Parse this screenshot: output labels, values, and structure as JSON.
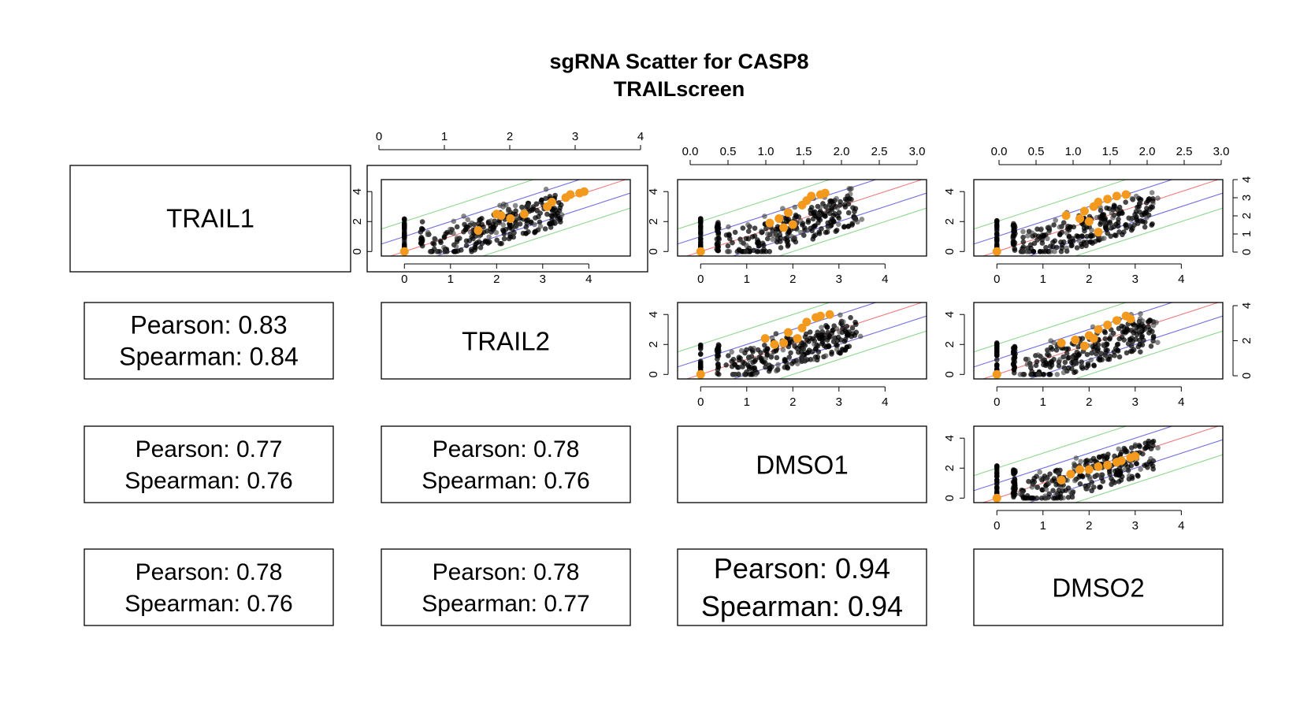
{
  "title": "sgRNA Scatter for CASP8",
  "subtitle": "TRAILscreen",
  "samples": [
    "TRAIL1",
    "TRAIL2",
    "DMSO1",
    "DMSO2"
  ],
  "correlations": [
    {
      "row": 1,
      "col": 0,
      "pearson": "Pearson: 0.83",
      "spearman": "Spearman: 0.84"
    },
    {
      "row": 2,
      "col": 0,
      "pearson": "Pearson: 0.77",
      "spearman": "Spearman: 0.76"
    },
    {
      "row": 2,
      "col": 1,
      "pearson": "Pearson: 0.78",
      "spearman": "Spearman: 0.76"
    },
    {
      "row": 3,
      "col": 0,
      "pearson": "Pearson: 0.78",
      "spearman": "Spearman: 0.76"
    },
    {
      "row": 3,
      "col": 1,
      "pearson": "Pearson: 0.78",
      "spearman": "Spearman: 0.77"
    },
    {
      "row": 3,
      "col": 2,
      "pearson": "Pearson: 0.94",
      "spearman": "Spearman: 0.94"
    }
  ],
  "colors": {
    "points": "#000000",
    "highlight": "#f39a1e",
    "line_identity": "#f08080",
    "line_inner": "#6f6fe0",
    "line_outer": "#8fd88f"
  },
  "chart_data": {
    "type": "scatter",
    "xlim": [
      -0.5,
      4.9
    ],
    "ylim": [
      -0.3,
      4.8
    ],
    "top_axis_ticks": {
      "col1": [
        "0",
        "1",
        "2",
        "3",
        "4"
      ],
      "col2": [
        "0.0",
        "0.5",
        "1.0",
        "1.5",
        "2.0",
        "2.5",
        "3.0"
      ],
      "col3": [
        "0.0",
        "0.5",
        "1.0",
        "1.5",
        "2.0",
        "2.5",
        "3.0"
      ]
    },
    "bottom_axis_ticks": [
      "0",
      "1",
      "2",
      "3",
      "4"
    ],
    "left_axis_ticks": [
      "0",
      "2",
      "4"
    ],
    "right_axis_ticks": {
      "row0": [
        "0",
        "1",
        "2",
        "3",
        "4"
      ],
      "row1": [
        "0",
        "2",
        "4"
      ]
    },
    "panels": [
      {
        "row": 0,
        "col": 1,
        "highlight": [
          [
            0,
            0
          ],
          [
            1.6,
            1.4
          ],
          [
            2.0,
            2.5
          ],
          [
            2.1,
            2.4
          ],
          [
            2.3,
            2.2
          ],
          [
            2.6,
            2.5
          ],
          [
            3.1,
            3.0
          ],
          [
            3.2,
            3.3
          ],
          [
            3.5,
            3.6
          ],
          [
            3.6,
            3.8
          ],
          [
            3.8,
            3.9
          ],
          [
            3.9,
            4.0
          ]
        ]
      },
      {
        "row": 0,
        "col": 2,
        "highlight": [
          [
            0,
            0
          ],
          [
            1.5,
            1.9
          ],
          [
            1.7,
            2.2
          ],
          [
            1.8,
            1.6
          ],
          [
            1.9,
            2.6
          ],
          [
            2.0,
            1.8
          ],
          [
            2.2,
            3.1
          ],
          [
            2.3,
            3.4
          ],
          [
            2.4,
            3.7
          ],
          [
            2.6,
            3.8
          ],
          [
            2.7,
            3.9
          ]
        ]
      },
      {
        "row": 0,
        "col": 3,
        "highlight": [
          [
            0,
            0
          ],
          [
            1.5,
            2.4
          ],
          [
            1.8,
            2.2
          ],
          [
            1.9,
            2.7
          ],
          [
            2.0,
            2.0
          ],
          [
            2.1,
            3.0
          ],
          [
            2.2,
            1.3
          ],
          [
            2.2,
            3.3
          ],
          [
            2.4,
            3.5
          ],
          [
            2.6,
            3.7
          ],
          [
            2.8,
            3.8
          ]
        ]
      },
      {
        "row": 1,
        "col": 2,
        "highlight": [
          [
            0,
            0
          ],
          [
            1.4,
            2.4
          ],
          [
            1.6,
            2.0
          ],
          [
            1.8,
            2.1
          ],
          [
            1.9,
            2.8
          ],
          [
            2.1,
            2.4
          ],
          [
            2.2,
            3.1
          ],
          [
            2.3,
            3.5
          ],
          [
            2.5,
            3.8
          ],
          [
            2.6,
            3.9
          ],
          [
            2.8,
            4.0
          ]
        ]
      },
      {
        "row": 1,
        "col": 3,
        "highlight": [
          [
            0,
            0
          ],
          [
            1.4,
            2.1
          ],
          [
            1.7,
            2.3
          ],
          [
            1.9,
            1.9
          ],
          [
            2.0,
            2.6
          ],
          [
            2.1,
            2.4
          ],
          [
            2.2,
            3.0
          ],
          [
            2.4,
            3.3
          ],
          [
            2.6,
            3.6
          ],
          [
            2.8,
            3.9
          ],
          [
            2.9,
            3.7
          ]
        ]
      },
      {
        "row": 2,
        "col": 3,
        "highlight": [
          [
            0,
            0
          ],
          [
            1.4,
            1.2
          ],
          [
            1.6,
            1.6
          ],
          [
            1.8,
            1.9
          ],
          [
            2.0,
            1.9
          ],
          [
            2.2,
            2.1
          ],
          [
            2.4,
            2.2
          ],
          [
            2.6,
            2.4
          ],
          [
            2.7,
            2.5
          ],
          [
            2.9,
            2.7
          ],
          [
            3.0,
            2.8
          ]
        ]
      }
    ]
  }
}
